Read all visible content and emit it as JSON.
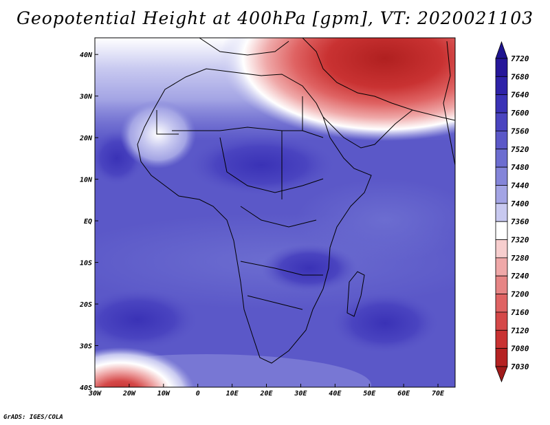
{
  "title": "Geopotential Height at 400hPa [gpm], VT: 2020021103",
  "footer": "GrADS: IGES/COLA",
  "map": {
    "lat_labels": [
      "40N",
      "30N",
      "20N",
      "10N",
      "EQ",
      "10S",
      "20S",
      "30S",
      "40S"
    ],
    "lon_labels": [
      "30W",
      "20W",
      "10W",
      "0",
      "10E",
      "20E",
      "30E",
      "40E",
      "50E",
      "60E",
      "70E"
    ],
    "extent": {
      "lon_min": -30,
      "lon_max": 75,
      "lat_min": -40,
      "lat_max": 44
    }
  },
  "colorbar": {
    "levels": [
      "7720",
      "7680",
      "7640",
      "7600",
      "7560",
      "7520",
      "7480",
      "7440",
      "7400",
      "7360",
      "7320",
      "7280",
      "7240",
      "7200",
      "7160",
      "7120",
      "7080",
      "7030"
    ],
    "colors": [
      "#26179a",
      "#2e22a8",
      "#3a32b6",
      "#4a44c0",
      "#5b58c8",
      "#6c6dd0",
      "#8485d9",
      "#a3a4e4",
      "#c8c9f0",
      "#ffffff",
      "#f7cece",
      "#efa8a8",
      "#e68585",
      "#df6363",
      "#d54848",
      "#c93232",
      "#b52222"
    ],
    "top_arrow": "#1f1590",
    "bottom_arrow": "#a01b1b"
  }
}
